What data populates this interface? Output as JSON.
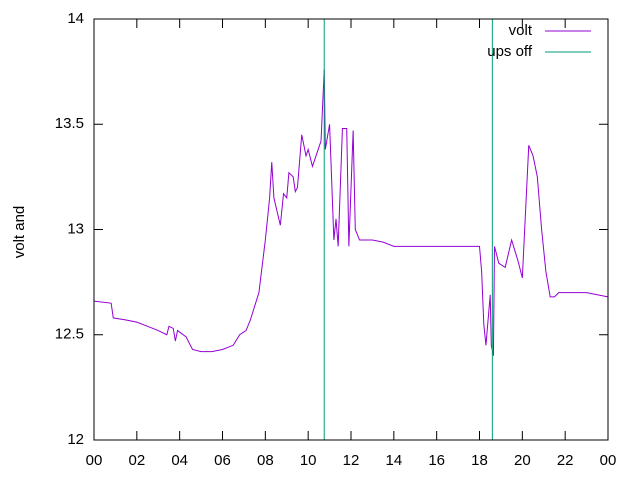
{
  "chart_data": {
    "type": "line",
    "ylabel": "volt and",
    "xlim": [
      0,
      24
    ],
    "xticks": [
      {
        "value": 0,
        "label": "00"
      },
      {
        "value": 2,
        "label": "02"
      },
      {
        "value": 4,
        "label": "04"
      },
      {
        "value": 6,
        "label": "06"
      },
      {
        "value": 8,
        "label": "08"
      },
      10,
      12,
      14,
      16,
      18,
      20,
      22,
      {
        "value": 24,
        "label": "00"
      }
    ],
    "ylim": [
      12,
      14
    ],
    "yticks": [
      12,
      12.5,
      13,
      13.5,
      14
    ],
    "legend": "top-right",
    "series": [
      {
        "name": "volt",
        "color": "#9400d3",
        "x": [
          0,
          0.8,
          0.9,
          1.5,
          2,
          2.5,
          3,
          3.4,
          3.5,
          3.7,
          3.8,
          3.9,
          4.3,
          4.6,
          5,
          5.5,
          6,
          6.5,
          6.8,
          7.1,
          7.3,
          7.7,
          8.0,
          8.2,
          8.3,
          8.4,
          8.7,
          8.85,
          9.0,
          9.1,
          9.3,
          9.4,
          9.5,
          9.7,
          9.9,
          10.0,
          10.2,
          10.4,
          10.6,
          10.75,
          10.8,
          11.0,
          11.2,
          11.3,
          11.4,
          11.6,
          11.8,
          11.9,
          12.1,
          12.2,
          12.4,
          13,
          13.5,
          14,
          16,
          17,
          18.0,
          18.1,
          18.2,
          18.3,
          18.5,
          18.55,
          18.65,
          18.7,
          18.9,
          19.2,
          19.5,
          19.8,
          20.0,
          20.3,
          20.5,
          20.7,
          20.9,
          21.1,
          21.3,
          21.5,
          21.7,
          22.5,
          23,
          23.5,
          24
        ],
        "values": [
          12.66,
          12.65,
          12.58,
          12.57,
          12.56,
          12.54,
          12.52,
          12.5,
          12.54,
          12.53,
          12.47,
          12.52,
          12.49,
          12.43,
          12.42,
          12.42,
          12.43,
          12.45,
          12.5,
          12.52,
          12.57,
          12.7,
          12.95,
          13.15,
          13.32,
          13.15,
          13.02,
          13.17,
          13.15,
          13.27,
          13.25,
          13.18,
          13.2,
          13.45,
          13.35,
          13.38,
          13.3,
          13.36,
          13.42,
          13.76,
          13.38,
          13.5,
          12.95,
          13.05,
          12.92,
          13.48,
          13.48,
          12.92,
          13.47,
          13.0,
          12.95,
          12.95,
          12.94,
          12.92,
          12.92,
          12.92,
          12.92,
          12.8,
          12.55,
          12.45,
          12.69,
          12.45,
          12.4,
          12.92,
          12.84,
          12.82,
          12.95,
          12.85,
          12.77,
          13.4,
          13.35,
          13.25,
          13.0,
          12.8,
          12.68,
          12.68,
          12.7,
          12.7,
          12.7,
          12.69,
          12.68
        ]
      },
      {
        "name": "ups off",
        "color": "#009e73",
        "style": "impulses",
        "x": [
          10.75,
          18.6
        ],
        "values": [
          14,
          14
        ]
      }
    ]
  }
}
